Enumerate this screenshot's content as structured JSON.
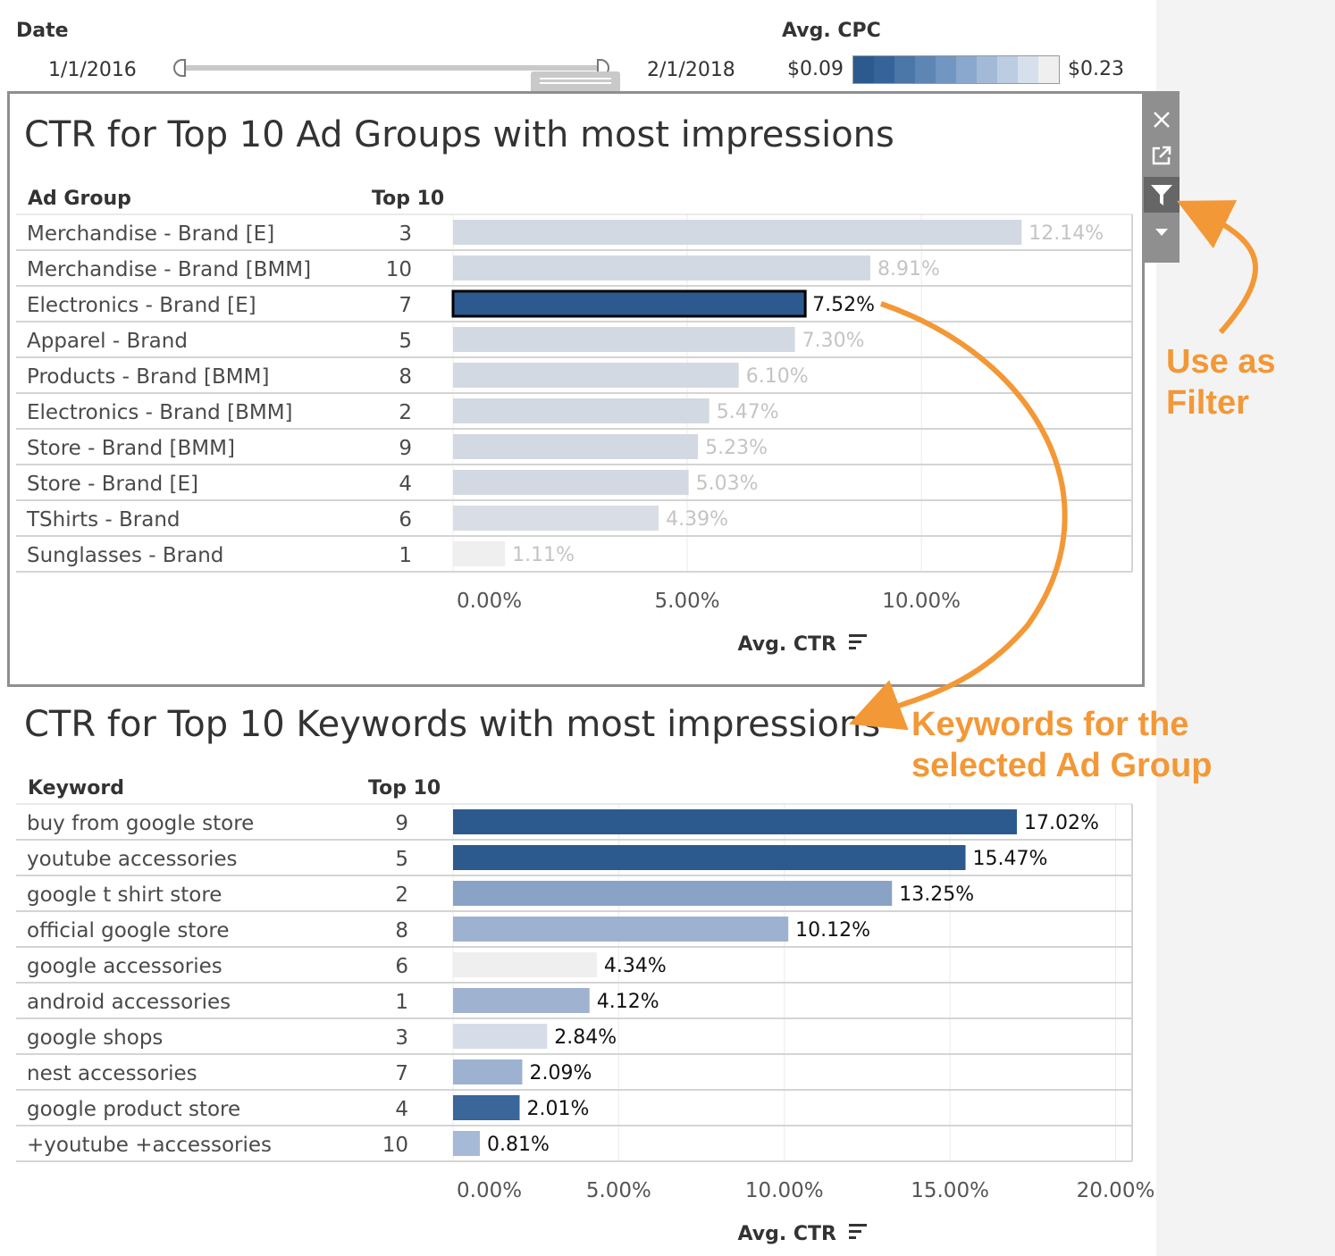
{
  "filters": {
    "date": {
      "label": "Date",
      "start": "1/1/2016",
      "end": "2/1/2018"
    },
    "cpc": {
      "label": "Avg. CPC",
      "min": "$0.09",
      "max": "$0.23",
      "gradient": [
        "#2c5a8f",
        "#36649a",
        "#4a76a8",
        "#5d86b5",
        "#7196c1",
        "#8aa8cd",
        "#a3bad7",
        "#bccde2",
        "#d6dfec",
        "#efefef"
      ]
    }
  },
  "toolbar": {
    "icons": [
      "close-icon",
      "popout-icon",
      "filter-icon",
      "dropdown-arrow-icon"
    ]
  },
  "annotations": {
    "filter_line1": "Use as",
    "filter_line2": "Filter",
    "keywords_line1": "Keywords for the",
    "keywords_line2": "selected Ad Group",
    "accent": "#f39836"
  },
  "chart_data": [
    {
      "type": "bar",
      "orientation": "horizontal",
      "title": "CTR for Top 10 Ad Groups with most impressions",
      "row_header": "Ad Group",
      "rank_header": "Top 10",
      "xlabel": "Avg. CTR",
      "xlim": [
        0,
        14.5
      ],
      "x_ticks": [
        "0.00%",
        "5.00%",
        "10.00%"
      ],
      "categories": [
        "Merchandise - Brand [E]",
        "Merchandise - Brand [BMM]",
        "Electronics - Brand [E]",
        "Apparel - Brand",
        "Products - Brand [BMM]",
        "Electronics - Brand [BMM]",
        "Store - Brand [BMM]",
        "Store - Brand [E]",
        "TShirts - Brand",
        "Sunglasses - Brand"
      ],
      "rank": [
        "3",
        "10",
        "7",
        "5",
        "8",
        "2",
        "9",
        "4",
        "6",
        "1"
      ],
      "values": [
        12.14,
        8.91,
        7.52,
        7.3,
        6.1,
        5.47,
        5.23,
        5.03,
        4.39,
        1.11
      ],
      "labels": [
        "12.14%",
        "8.91%",
        "7.52%",
        "7.30%",
        "6.10%",
        "5.47%",
        "5.23%",
        "5.03%",
        "4.39%",
        "1.11%"
      ],
      "colors": [
        "#d3d9e2",
        "#d3d9e2",
        "#2c5a8f",
        "#d3d9e2",
        "#d3d9e2",
        "#d3d9e2",
        "#d3d9e2",
        "#d3d9e2",
        "#d9dee6",
        "#efefef"
      ],
      "selected": "Electronics - Brand [E]",
      "grid": true
    },
    {
      "type": "bar",
      "orientation": "horizontal",
      "title": "CTR for Top 10 Keywords with most impressions",
      "row_header": "Keyword",
      "rank_header": "Top 10",
      "xlabel": "Avg. CTR",
      "xlim": [
        0,
        20.5
      ],
      "x_ticks": [
        "0.00%",
        "5.00%",
        "10.00%",
        "15.00%",
        "20.00%"
      ],
      "categories": [
        "buy from google store",
        "youtube accessories",
        "google t shirt store",
        "official google store",
        "google accessories",
        "android accessories",
        "google shops",
        "nest accessories",
        "google product store",
        "+youtube +accessories"
      ],
      "rank": [
        "9",
        "5",
        "2",
        "8",
        "6",
        "1",
        "3",
        "7",
        "4",
        "10"
      ],
      "values": [
        17.02,
        15.47,
        13.25,
        10.12,
        4.34,
        4.12,
        2.84,
        2.09,
        2.01,
        0.81
      ],
      "labels": [
        "17.02%",
        "15.47%",
        "13.25%",
        "10.12%",
        "4.34%",
        "4.12%",
        "2.84%",
        "2.09%",
        "2.01%",
        "0.81%"
      ],
      "colors": [
        "#2c5a8f",
        "#2c5a8f",
        "#89a3c6",
        "#9db2d0",
        "#efefef",
        "#9fb3d1",
        "#d6dde8",
        "#9db2d0",
        "#3a6699",
        "#a6b9d6"
      ],
      "grid": true
    }
  ]
}
